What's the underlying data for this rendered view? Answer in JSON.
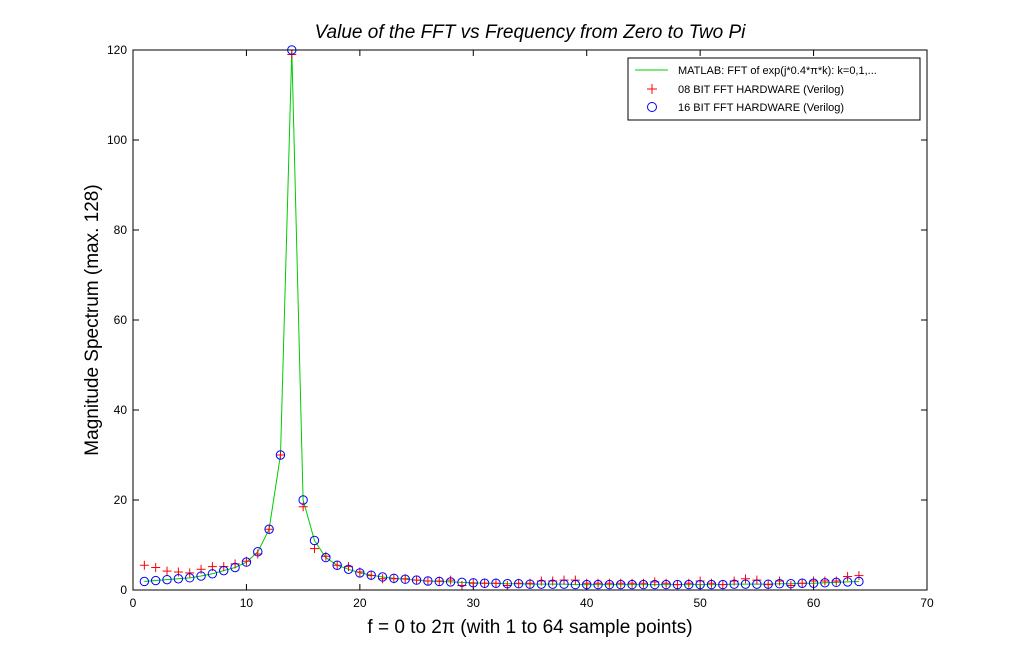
{
  "chart_data": {
    "type": "line",
    "title": "Value of the FFT vs Frequency from Zero to Two Pi",
    "xlabel": "f = 0 to 2π (with 1 to 64 sample points)",
    "ylabel": "Magnitude Spectrum (max. 128)",
    "xlim": [
      0,
      70
    ],
    "ylim": [
      0,
      120
    ],
    "xticks": [
      0,
      10,
      20,
      30,
      40,
      50,
      60,
      70
    ],
    "yticks": [
      0,
      20,
      40,
      60,
      80,
      100,
      120
    ],
    "grid": false,
    "legend_position": "top-right",
    "x": [
      1,
      2,
      3,
      4,
      5,
      6,
      7,
      8,
      9,
      10,
      11,
      12,
      13,
      14,
      15,
      16,
      17,
      18,
      19,
      20,
      21,
      22,
      23,
      24,
      25,
      26,
      27,
      28,
      29,
      30,
      31,
      32,
      33,
      34,
      35,
      36,
      37,
      38,
      39,
      40,
      41,
      42,
      43,
      44,
      45,
      46,
      47,
      48,
      49,
      50,
      51,
      52,
      53,
      54,
      55,
      56,
      57,
      58,
      59,
      60,
      61,
      62,
      63,
      64
    ],
    "series": [
      {
        "name": "MATLAB: FFT of exp(j*0.4*π*k): k=0,1,...",
        "marker": "line",
        "color": "#00cc00",
        "values": [
          1.9,
          2.1,
          2.3,
          2.5,
          2.7,
          3.1,
          3.6,
          4.3,
          5.0,
          6.2,
          8.5,
          13.5,
          30.0,
          120.0,
          20.0,
          11.0,
          7.2,
          5.5,
          4.6,
          3.8,
          3.3,
          2.9,
          2.6,
          2.4,
          2.2,
          2.0,
          1.9,
          1.8,
          1.7,
          1.6,
          1.5,
          1.5,
          1.4,
          1.4,
          1.3,
          1.3,
          1.3,
          1.3,
          1.2,
          1.2,
          1.2,
          1.2,
          1.2,
          1.2,
          1.2,
          1.2,
          1.2,
          1.2,
          1.2,
          1.2,
          1.2,
          1.2,
          1.3,
          1.3,
          1.3,
          1.3,
          1.4,
          1.4,
          1.5,
          1.5,
          1.6,
          1.7,
          1.8,
          1.9
        ]
      },
      {
        "name": "08 BIT FFT HARDWARE (Verilog)",
        "marker": "plus",
        "color": "#ff0000",
        "values": [
          5.5,
          5.0,
          4.2,
          4.0,
          3.8,
          4.6,
          5.2,
          5.2,
          5.8,
          6.4,
          8.0,
          13.5,
          30.0,
          119.0,
          18.5,
          9.2,
          7.5,
          5.5,
          5.2,
          4.0,
          3.2,
          2.5,
          2.5,
          2.5,
          2.2,
          2.0,
          2.0,
          2.2,
          1.0,
          1.5,
          1.5,
          1.5,
          1.0,
          1.5,
          1.5,
          2.0,
          2.0,
          2.2,
          2.2,
          1.5,
          1.5,
          1.5,
          1.5,
          1.5,
          1.5,
          1.8,
          1.5,
          1.2,
          1.5,
          2.0,
          1.5,
          1.2,
          2.0,
          2.5,
          2.2,
          1.2,
          2.0,
          1.0,
          1.5,
          2.0,
          2.0,
          2.0,
          3.0,
          3.2
        ]
      },
      {
        "name": "16 BIT FFT HARDWARE (Verilog)",
        "marker": "circle",
        "color": "#0000ff",
        "values": [
          1.9,
          2.1,
          2.3,
          2.5,
          2.7,
          3.1,
          3.6,
          4.3,
          5.0,
          6.2,
          8.5,
          13.5,
          30.0,
          120.0,
          20.0,
          11.0,
          7.2,
          5.5,
          4.6,
          3.8,
          3.3,
          2.9,
          2.6,
          2.4,
          2.2,
          2.0,
          1.9,
          1.8,
          1.7,
          1.6,
          1.5,
          1.5,
          1.4,
          1.4,
          1.3,
          1.3,
          1.3,
          1.3,
          1.2,
          1.2,
          1.2,
          1.2,
          1.2,
          1.2,
          1.2,
          1.2,
          1.2,
          1.2,
          1.2,
          1.2,
          1.2,
          1.2,
          1.3,
          1.3,
          1.3,
          1.3,
          1.4,
          1.4,
          1.5,
          1.5,
          1.6,
          1.7,
          1.8,
          1.9
        ]
      }
    ]
  }
}
